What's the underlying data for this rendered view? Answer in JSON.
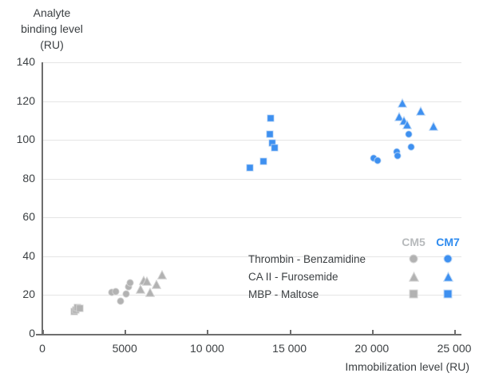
{
  "y_axis": {
    "title_lines": [
      "Analyte",
      "binding level",
      "(RU)"
    ],
    "tick_labels": [
      "0",
      "20",
      "40",
      "60",
      "80",
      "100",
      "120",
      "140"
    ]
  },
  "x_axis": {
    "title": "Immobilization level (RU)",
    "tick_labels": [
      "0",
      "5000",
      "10 000",
      "15 000",
      "20 000",
      "25 000"
    ]
  },
  "chart_data": {
    "type": "scatter",
    "xlabel": "Immobilization level (RU)",
    "ylabel": "Analyte binding level (RU)",
    "xlim": [
      0,
      25000
    ],
    "ylim": [
      0,
      140
    ],
    "x_ticks": [
      0,
      5000,
      10000,
      15000,
      20000,
      25000
    ],
    "y_ticks": [
      0,
      20,
      40,
      60,
      80,
      100,
      120,
      140
    ],
    "grid": "horizontal-light",
    "legend_position": "inside-bottom-right",
    "sensor_chips": [
      "CM5",
      "CM7"
    ],
    "colors": {
      "CM5": "#b2b2b2",
      "CM7": "#3e90f0",
      "CM5_header": "#b7babc",
      "CM7_header": "#2e8bef"
    },
    "halos": {
      "CM5": "#d6d6d6",
      "CM7": "#bfd9f7"
    },
    "series": [
      {
        "name": "Thrombin - Benzamidine",
        "chip": "CM5",
        "marker": "circle",
        "points": [
          [
            4150,
            21.5
          ],
          [
            4400,
            22
          ],
          [
            4700,
            17
          ],
          [
            5050,
            20.5
          ],
          [
            5200,
            24.5
          ],
          [
            5300,
            26.5
          ]
        ]
      },
      {
        "name": "CA II - Furosemide",
        "chip": "CM5",
        "marker": "triangle",
        "points": [
          [
            5900,
            23
          ],
          [
            6100,
            27.5
          ],
          [
            6300,
            27
          ],
          [
            6500,
            21.5
          ],
          [
            6900,
            25.5
          ],
          [
            7200,
            30.5
          ]
        ]
      },
      {
        "name": "MBP - Maltose",
        "chip": "CM5",
        "marker": "square",
        "points": [
          [
            1900,
            11.5
          ],
          [
            2000,
            12.5
          ],
          [
            2100,
            13.5
          ],
          [
            2250,
            13
          ]
        ]
      },
      {
        "name": "Thrombin - Benzamidine",
        "chip": "CM7",
        "marker": "circle",
        "points": [
          [
            20050,
            90.5
          ],
          [
            20300,
            89.5
          ],
          [
            21450,
            94
          ],
          [
            21500,
            92
          ],
          [
            22200,
            103
          ],
          [
            22350,
            96.5
          ]
        ]
      },
      {
        "name": "CA II - Furosemide",
        "chip": "CM7",
        "marker": "triangle",
        "points": [
          [
            21600,
            112
          ],
          [
            21800,
            119
          ],
          [
            21900,
            110
          ],
          [
            22100,
            108
          ],
          [
            22900,
            115
          ],
          [
            23700,
            107
          ]
        ]
      },
      {
        "name": "MBP - Maltose",
        "chip": "CM7",
        "marker": "square",
        "points": [
          [
            12550,
            85.5
          ],
          [
            13350,
            89
          ],
          [
            13750,
            103
          ],
          [
            13800,
            111
          ],
          [
            13900,
            98.5
          ],
          [
            14050,
            96
          ]
        ]
      }
    ],
    "legend": {
      "columns": [
        "CM5",
        "CM7"
      ],
      "rows": [
        {
          "label": "Thrombin - Benzamidine",
          "marker": "circle"
        },
        {
          "label": "CA II - Furosemide",
          "marker": "triangle"
        },
        {
          "label": "MBP - Maltose",
          "marker": "square"
        }
      ]
    }
  },
  "style": {
    "axis_color": "#6e6e6e",
    "grid_color": "#e5e5e5",
    "text_color": "#3c4043"
  }
}
